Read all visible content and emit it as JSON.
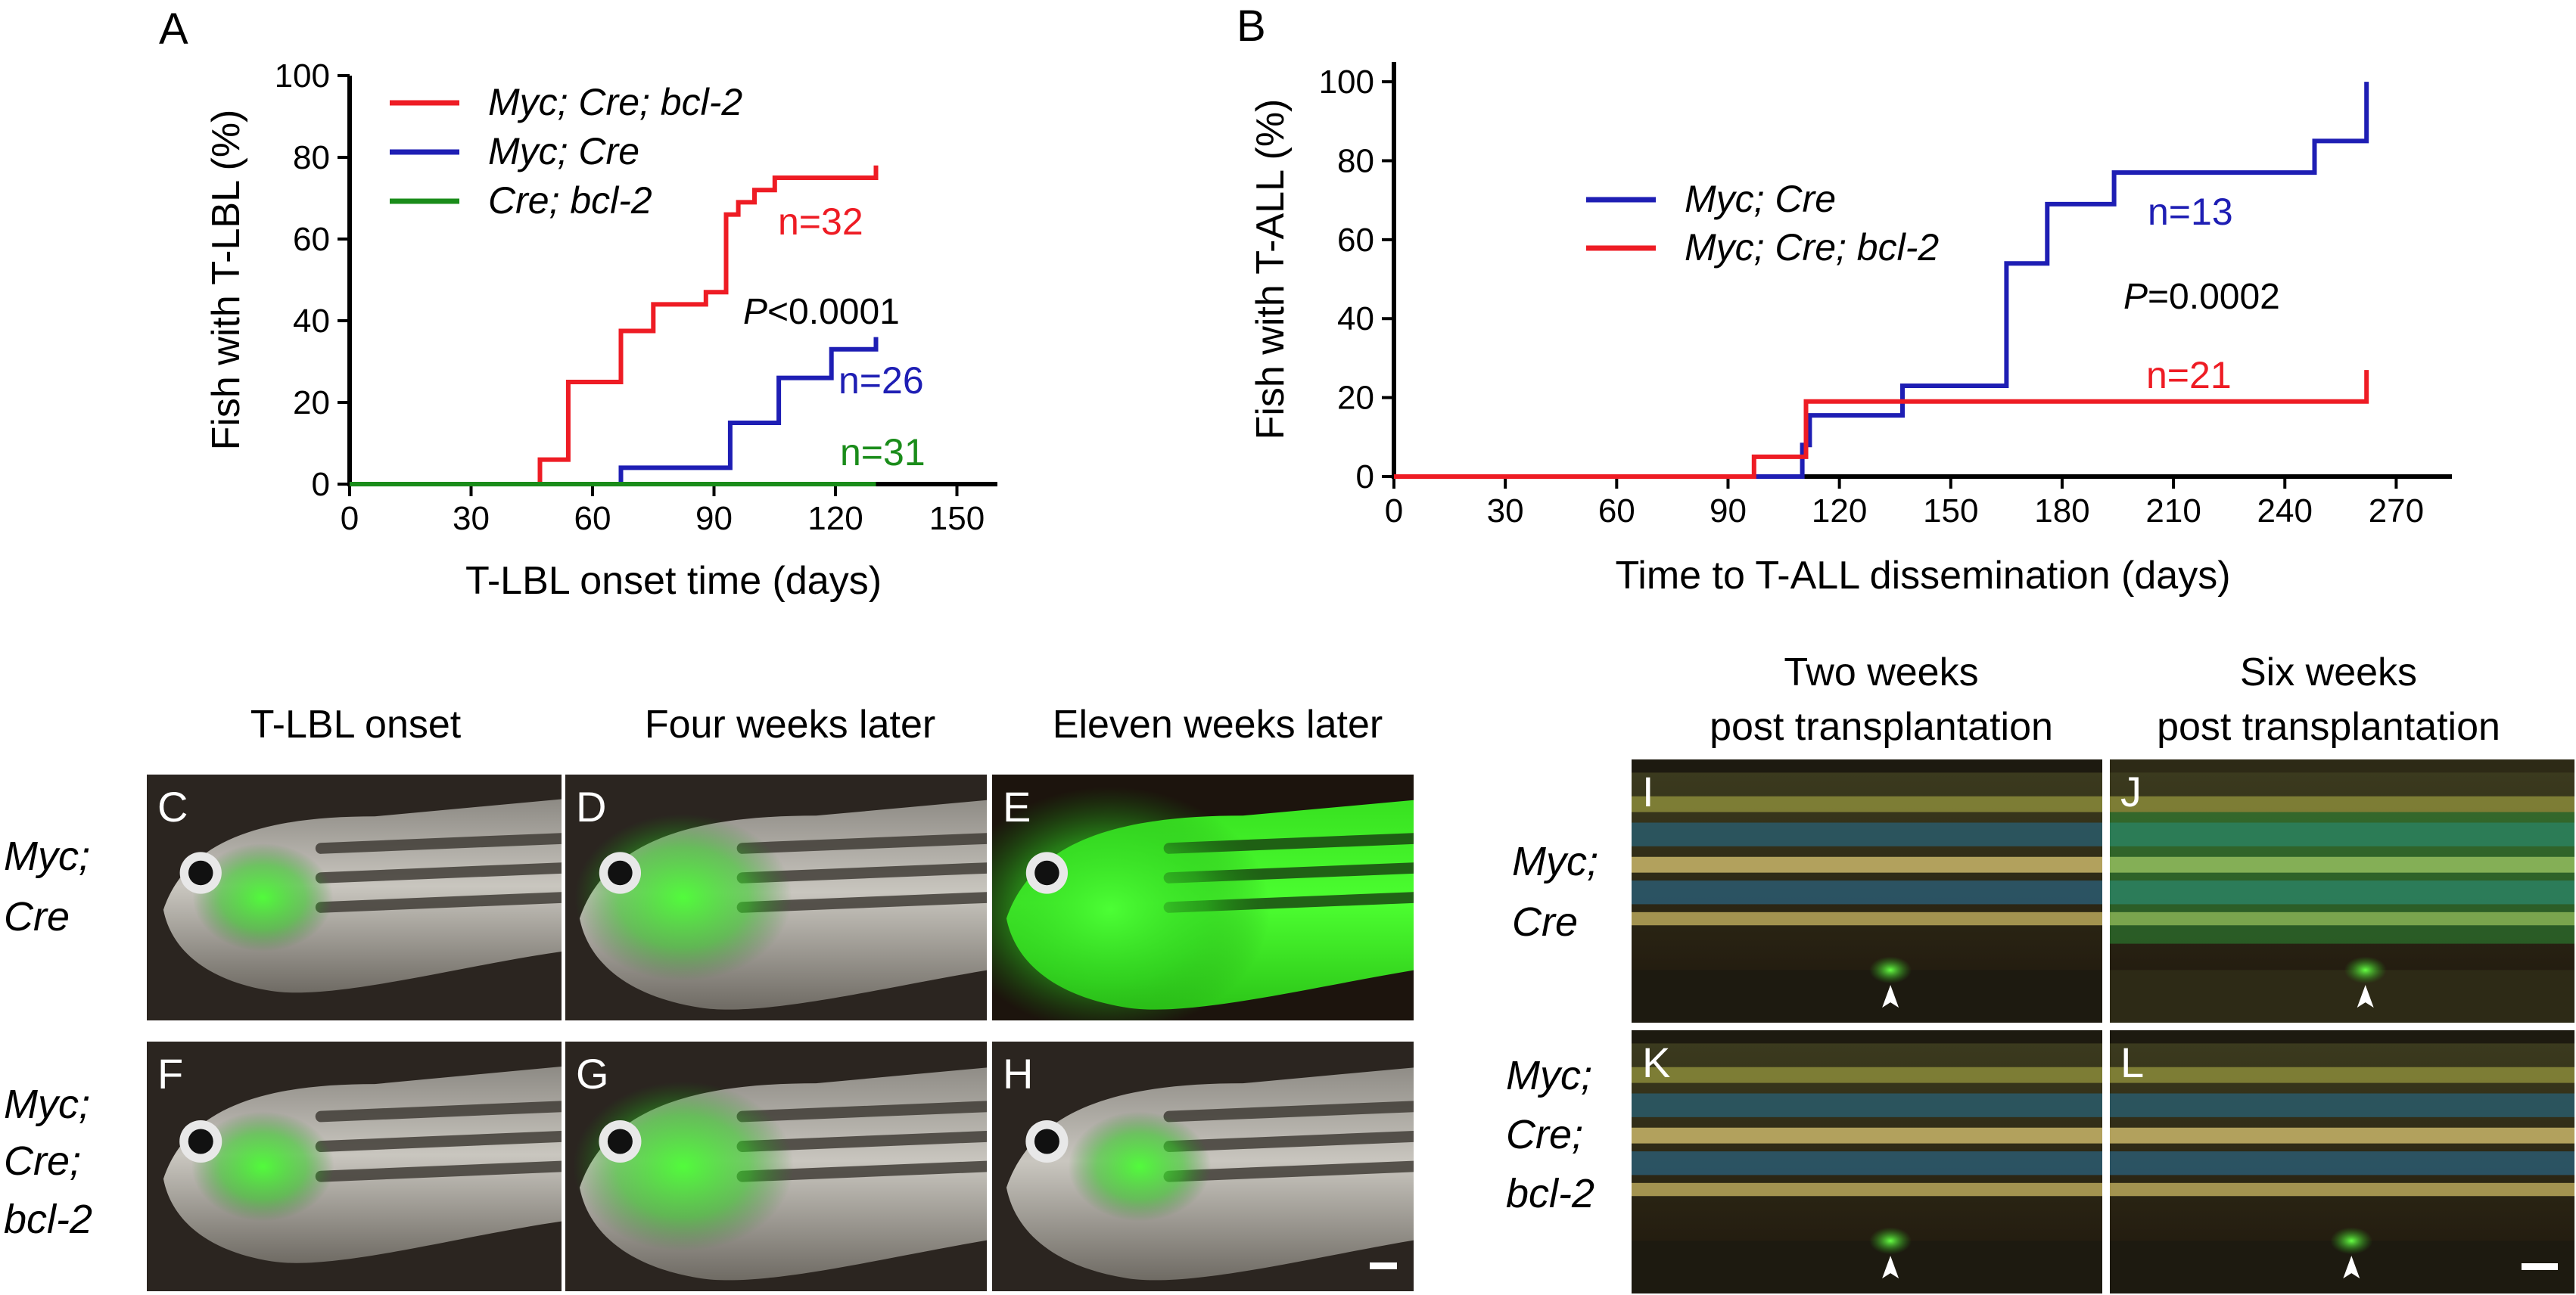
{
  "chart_data": [
    {
      "panel": "A",
      "type": "line",
      "title": "",
      "xlabel": "T-LBL onset time (days)",
      "ylabel": "Fish with T-LBL (%)",
      "xlim": [
        0,
        160
      ],
      "ylim": [
        0,
        100
      ],
      "xticks": [
        "0",
        "30",
        "60",
        "90",
        "120",
        "150"
      ],
      "yticks": [
        "0",
        "20",
        "40",
        "60",
        "80",
        "100"
      ],
      "grid": false,
      "legend_position": "top-left",
      "annotation": {
        "italic": "P",
        "rest": "<0.0001"
      },
      "series": [
        {
          "name_parts": [
            {
              "text": "Myc; Cre; ",
              "italic": true
            },
            {
              "text": "bcl-2",
              "italic": true
            }
          ],
          "name": "Myc; Cre; bcl-2",
          "color": "#ee1c24",
          "n_label": "n=32",
          "x": [
            0,
            47,
            47,
            54,
            54,
            67,
            67,
            75,
            75,
            81,
            81,
            88,
            88,
            93,
            93,
            96,
            96,
            100,
            100,
            105,
            105,
            130,
            130
          ],
          "y": [
            0,
            0,
            6,
            6,
            25,
            25,
            37.5,
            37.5,
            44,
            44,
            44,
            44,
            47,
            47,
            66,
            66,
            69,
            69,
            72,
            72,
            75,
            75,
            78
          ]
        },
        {
          "name": "Myc; Cre",
          "color": "#1e1eb4",
          "n_label": "n=26",
          "x": [
            0,
            67,
            67,
            94,
            94,
            106,
            106,
            119,
            119,
            130,
            130
          ],
          "y": [
            0,
            0,
            4,
            4,
            15,
            15,
            26,
            26,
            33,
            33,
            36
          ]
        },
        {
          "name": "Cre; bcl-2",
          "color": "#1a8c1a",
          "n_label": "n=31",
          "x": [
            0,
            130
          ],
          "y": [
            0,
            0
          ]
        }
      ]
    },
    {
      "panel": "B",
      "type": "line",
      "title": "",
      "xlabel": "Time to T-ALL dissemination (days)",
      "ylabel": "Fish with T-ALL (%)",
      "xlim": [
        0,
        285
      ],
      "ylim": [
        0,
        105
      ],
      "xticks": [
        "0",
        "30",
        "60",
        "90",
        "120",
        "150",
        "180",
        "210",
        "240",
        "270"
      ],
      "yticks": [
        "0",
        "20",
        "40",
        "60",
        "80",
        "100"
      ],
      "grid": false,
      "legend_position": "center-left",
      "annotation": {
        "italic": "P",
        "rest": "=0.0002"
      },
      "series": [
        {
          "name": "Myc; Cre",
          "color": "#1e1eb4",
          "n_label": "n=13",
          "x": [
            0,
            110,
            110,
            112,
            112,
            137,
            137,
            165,
            165,
            176,
            176,
            194,
            194,
            248,
            248,
            262,
            262
          ],
          "y": [
            0,
            0,
            8,
            8,
            15.5,
            15.5,
            23,
            23,
            54,
            54,
            69,
            69,
            77,
            77,
            85,
            85,
            100
          ]
        },
        {
          "name": "Myc; Cre; bcl-2",
          "color": "#ee1c24",
          "n_label": "n=21",
          "x": [
            0,
            97,
            97,
            111,
            111,
            262,
            262
          ],
          "y": [
            0,
            0,
            5,
            5,
            19,
            19,
            27
          ]
        }
      ]
    }
  ],
  "figure": {
    "panel_labels": [
      "A",
      "B"
    ],
    "photo_headers_left": [
      "T-LBL onset",
      "Four weeks later",
      "Eleven weeks later"
    ],
    "photo_headers_right": [
      {
        "line1": "Two weeks",
        "line2": "post transplantation"
      },
      {
        "line1": "Six weeks",
        "line2": "post transplantation"
      }
    ],
    "row_labels_left": [
      [
        "Myc;",
        "Cre"
      ],
      [
        "Myc;",
        "Cre;",
        "bcl-2"
      ]
    ],
    "row_labels_right": [
      [
        "Myc;",
        "Cre"
      ],
      [
        "Myc;",
        "Cre;",
        "bcl-2"
      ]
    ],
    "photos": [
      {
        "letter": "C",
        "style": "onset"
      },
      {
        "letter": "D",
        "style": "mid"
      },
      {
        "letter": "E",
        "style": "late"
      },
      {
        "letter": "F",
        "style": "onset"
      },
      {
        "letter": "G",
        "style": "mid"
      },
      {
        "letter": "H",
        "style": "latebcl"
      },
      {
        "letter": "I",
        "style": "side",
        "arrowhead": true
      },
      {
        "letter": "J",
        "style": "side2",
        "arrowhead": true
      },
      {
        "letter": "K",
        "style": "side3",
        "arrowhead": true
      },
      {
        "letter": "L",
        "style": "side3",
        "arrowhead": true
      }
    ],
    "colors": {
      "red": "#ee1c24",
      "blue": "#1e1eb4",
      "green": "#1a8c1a",
      "fluor": "#39ff2a"
    }
  }
}
